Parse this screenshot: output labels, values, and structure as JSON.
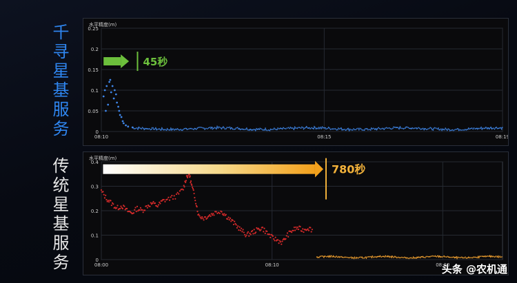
{
  "labels": {
    "top": "千寻星基服务",
    "bottom": "传统星基服务"
  },
  "watermark": "头条 @农机通",
  "chart_data": [
    {
      "type": "scatter",
      "title": "水平精度(m)",
      "series_color": "#3f86e8",
      "yticks": [
        "0.25",
        "0.2",
        "0.15",
        "0.1",
        "0.05",
        "0"
      ],
      "ylim": [
        0,
        0.25
      ],
      "xticks": [
        "08:10",
        "08:15",
        "08:19"
      ],
      "xlim": [
        0,
        9
      ],
      "grid": true,
      "annotation": {
        "text": "45秒",
        "color": "#6cbf3c",
        "x_start": 0.05,
        "x_end": 0.75,
        "y": 0.17
      },
      "points": [
        [
          0.05,
          0.085
        ],
        [
          0.08,
          0.1
        ],
        [
          0.1,
          0.05
        ],
        [
          0.12,
          0.11
        ],
        [
          0.15,
          0.065
        ],
        [
          0.18,
          0.12
        ],
        [
          0.2,
          0.125
        ],
        [
          0.22,
          0.095
        ],
        [
          0.25,
          0.11
        ],
        [
          0.28,
          0.08
        ],
        [
          0.3,
          0.1
        ],
        [
          0.33,
          0.09
        ],
        [
          0.35,
          0.07
        ],
        [
          0.38,
          0.06
        ],
        [
          0.4,
          0.05
        ],
        [
          0.42,
          0.04
        ],
        [
          0.45,
          0.035
        ],
        [
          0.48,
          0.025
        ],
        [
          0.5,
          0.02
        ],
        [
          0.55,
          0.015
        ],
        [
          0.6,
          0.012
        ],
        [
          0.7,
          0.01
        ]
      ],
      "baseline": {
        "x_from": 0.7,
        "x_to": 9,
        "y_mean": 0.007,
        "y_amp": 0.006
      }
    },
    {
      "type": "scatter",
      "title": "水平精度(m)",
      "series_color": "#d42a2a",
      "series2_color": "#f0a030",
      "yticks": [
        "0.4",
        "0.3",
        "0.2",
        "0.1",
        "0"
      ],
      "ylim": [
        0,
        0.4
      ],
      "xticks": [
        "08:00",
        "08:10",
        "08:20"
      ],
      "xlim": [
        0,
        23.5
      ],
      "grid": true,
      "annotation": {
        "text": "780秒",
        "color": "#f3b23a",
        "x_start": 0.1,
        "x_end": 13.0,
        "y": 0.37
      },
      "red_points": [
        [
          0.0,
          0.28
        ],
        [
          0.3,
          0.25
        ],
        [
          0.6,
          0.23
        ],
        [
          0.9,
          0.21
        ],
        [
          1.2,
          0.22
        ],
        [
          1.5,
          0.2
        ],
        [
          1.8,
          0.19
        ],
        [
          2.1,
          0.21
        ],
        [
          2.4,
          0.2
        ],
        [
          2.7,
          0.22
        ],
        [
          3.0,
          0.23
        ],
        [
          3.3,
          0.22
        ],
        [
          3.6,
          0.24
        ],
        [
          4.0,
          0.25
        ],
        [
          4.4,
          0.26
        ],
        [
          4.8,
          0.29
        ],
        [
          5.0,
          0.34
        ],
        [
          5.15,
          0.35
        ],
        [
          5.3,
          0.3
        ],
        [
          5.5,
          0.25
        ],
        [
          5.7,
          0.18
        ],
        [
          6.0,
          0.17
        ],
        [
          6.3,
          0.18
        ],
        [
          6.6,
          0.19
        ],
        [
          7.0,
          0.2
        ],
        [
          7.3,
          0.18
        ],
        [
          7.6,
          0.16
        ],
        [
          7.9,
          0.14
        ],
        [
          8.2,
          0.12
        ],
        [
          8.5,
          0.1
        ],
        [
          8.8,
          0.11
        ],
        [
          9.1,
          0.12
        ],
        [
          9.4,
          0.13
        ],
        [
          9.7,
          0.11
        ],
        [
          10.0,
          0.09
        ],
        [
          10.3,
          0.08
        ],
        [
          10.6,
          0.07
        ],
        [
          10.9,
          0.1
        ],
        [
          11.2,
          0.12
        ],
        [
          11.5,
          0.13
        ],
        [
          11.8,
          0.12
        ],
        [
          12.1,
          0.13
        ],
        [
          12.4,
          0.12
        ]
      ],
      "orange_baseline": {
        "x_from": 12.6,
        "x_to": 23.5,
        "y_mean": 0.01,
        "y_amp": 0.006
      }
    }
  ]
}
